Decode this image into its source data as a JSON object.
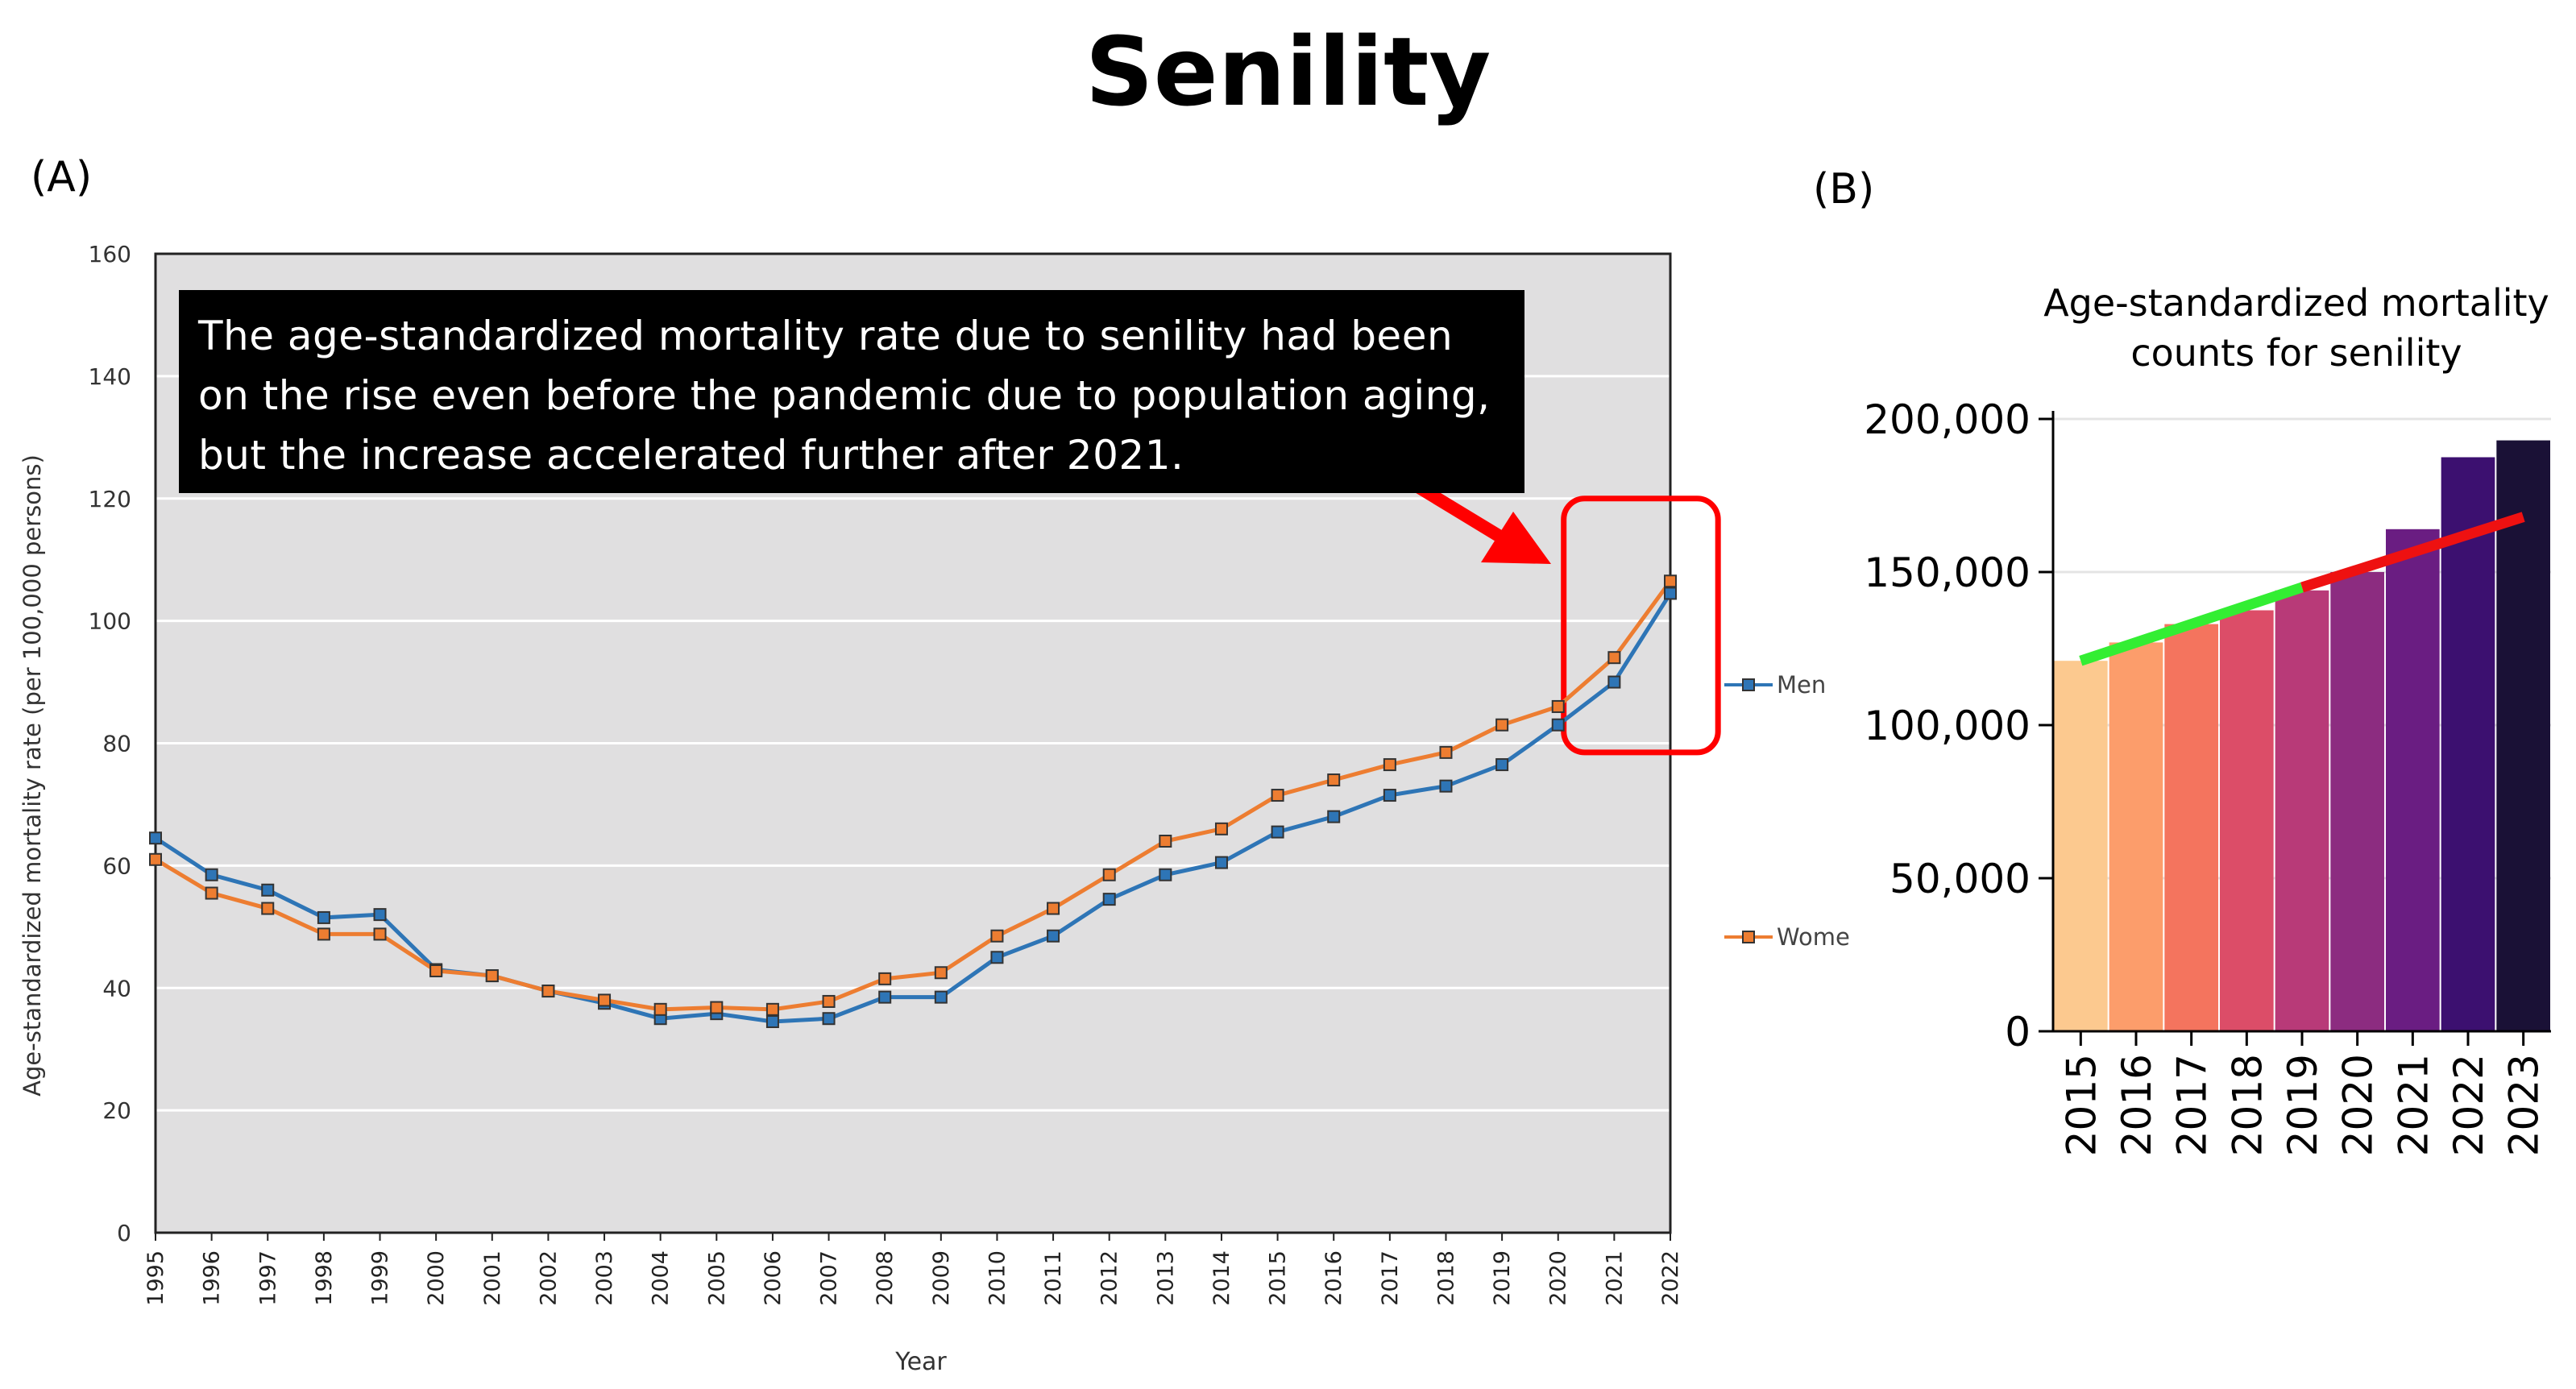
{
  "page": {
    "title": "Senility",
    "panel_a_label": "(A)",
    "panel_b_label": "(B)",
    "annotation_lines": [
      "The age-standardized mortality rate due to senility had been",
      "on the rise even before the pandemic due to population aging,",
      "but the increase accelerated further after 2021."
    ]
  },
  "chart_data": [
    {
      "type": "line",
      "title": "",
      "xlabel": "Year",
      "ylabel": "Age-standardized mortality rate (per 100,000 persons)",
      "x": [
        "1995",
        "1996",
        "1997",
        "1998",
        "1999",
        "2000",
        "2001",
        "2002",
        "2003",
        "2004",
        "2005",
        "2006",
        "2007",
        "2008",
        "2009",
        "2010",
        "2011",
        "2012",
        "2013",
        "2014",
        "2015",
        "2016",
        "2017",
        "2018",
        "2019",
        "2020",
        "2021",
        "2022"
      ],
      "ylim": [
        0,
        160
      ],
      "yticks": [
        "0",
        "20",
        "40",
        "60",
        "80",
        "100",
        "120",
        "140",
        "160"
      ],
      "grid": true,
      "legend_position": "right",
      "series": [
        {
          "name": "Men",
          "color": "#2e75b6",
          "values": [
            64.5,
            58.5,
            56,
            51.5,
            52,
            43,
            42,
            39.5,
            37.5,
            35,
            35.8,
            34.5,
            35,
            38.5,
            38.5,
            45,
            48.5,
            54.5,
            58.5,
            60.5,
            65.5,
            68,
            71.5,
            73,
            76.5,
            83,
            90,
            104.5
          ]
        },
        {
          "name": "Wome",
          "color": "#ed7d31",
          "values": [
            61,
            55.5,
            53,
            48.8,
            48.8,
            42.8,
            42,
            39.5,
            38,
            36.5,
            36.8,
            36.5,
            37.8,
            41.5,
            42.5,
            48.5,
            53,
            58.5,
            64,
            66,
            71.5,
            74,
            76.5,
            78.5,
            83,
            86,
            94,
            106.5
          ]
        }
      ],
      "highlight": {
        "label": "2021-2022 acceleration",
        "color": "#ff0000"
      }
    },
    {
      "type": "bar",
      "title_lines": [
        "Age-standardized mortality",
        "counts for senility"
      ],
      "categories": [
        "2015",
        "2016",
        "2017",
        "2018",
        "2019",
        "2020",
        "2021",
        "2022",
        "2023"
      ],
      "values": [
        121000,
        127000,
        133000,
        137500,
        144000,
        150000,
        164000,
        187500,
        193000
      ],
      "colors": [
        "#fcc98f",
        "#fc9d6b",
        "#f4745e",
        "#dc4d68",
        "#b83a78",
        "#8c2c80",
        "#6a1d82",
        "#3c1070",
        "#1a1136"
      ],
      "ylim": [
        0,
        200000
      ],
      "yticks": [
        "0",
        "50,000",
        "100,000",
        "150,000",
        "200,000"
      ],
      "trend_lines": [
        {
          "name": "pre-pandemic trend",
          "color": "#33ee33",
          "from_year": "2015",
          "to_year": "2019",
          "from_value": 121000,
          "to_value": 145000
        },
        {
          "name": "post-pandemic trend",
          "color": "#ee1111",
          "from_year": "2019",
          "to_year": "2023",
          "from_value": 145000,
          "to_value": 168000
        }
      ]
    }
  ]
}
